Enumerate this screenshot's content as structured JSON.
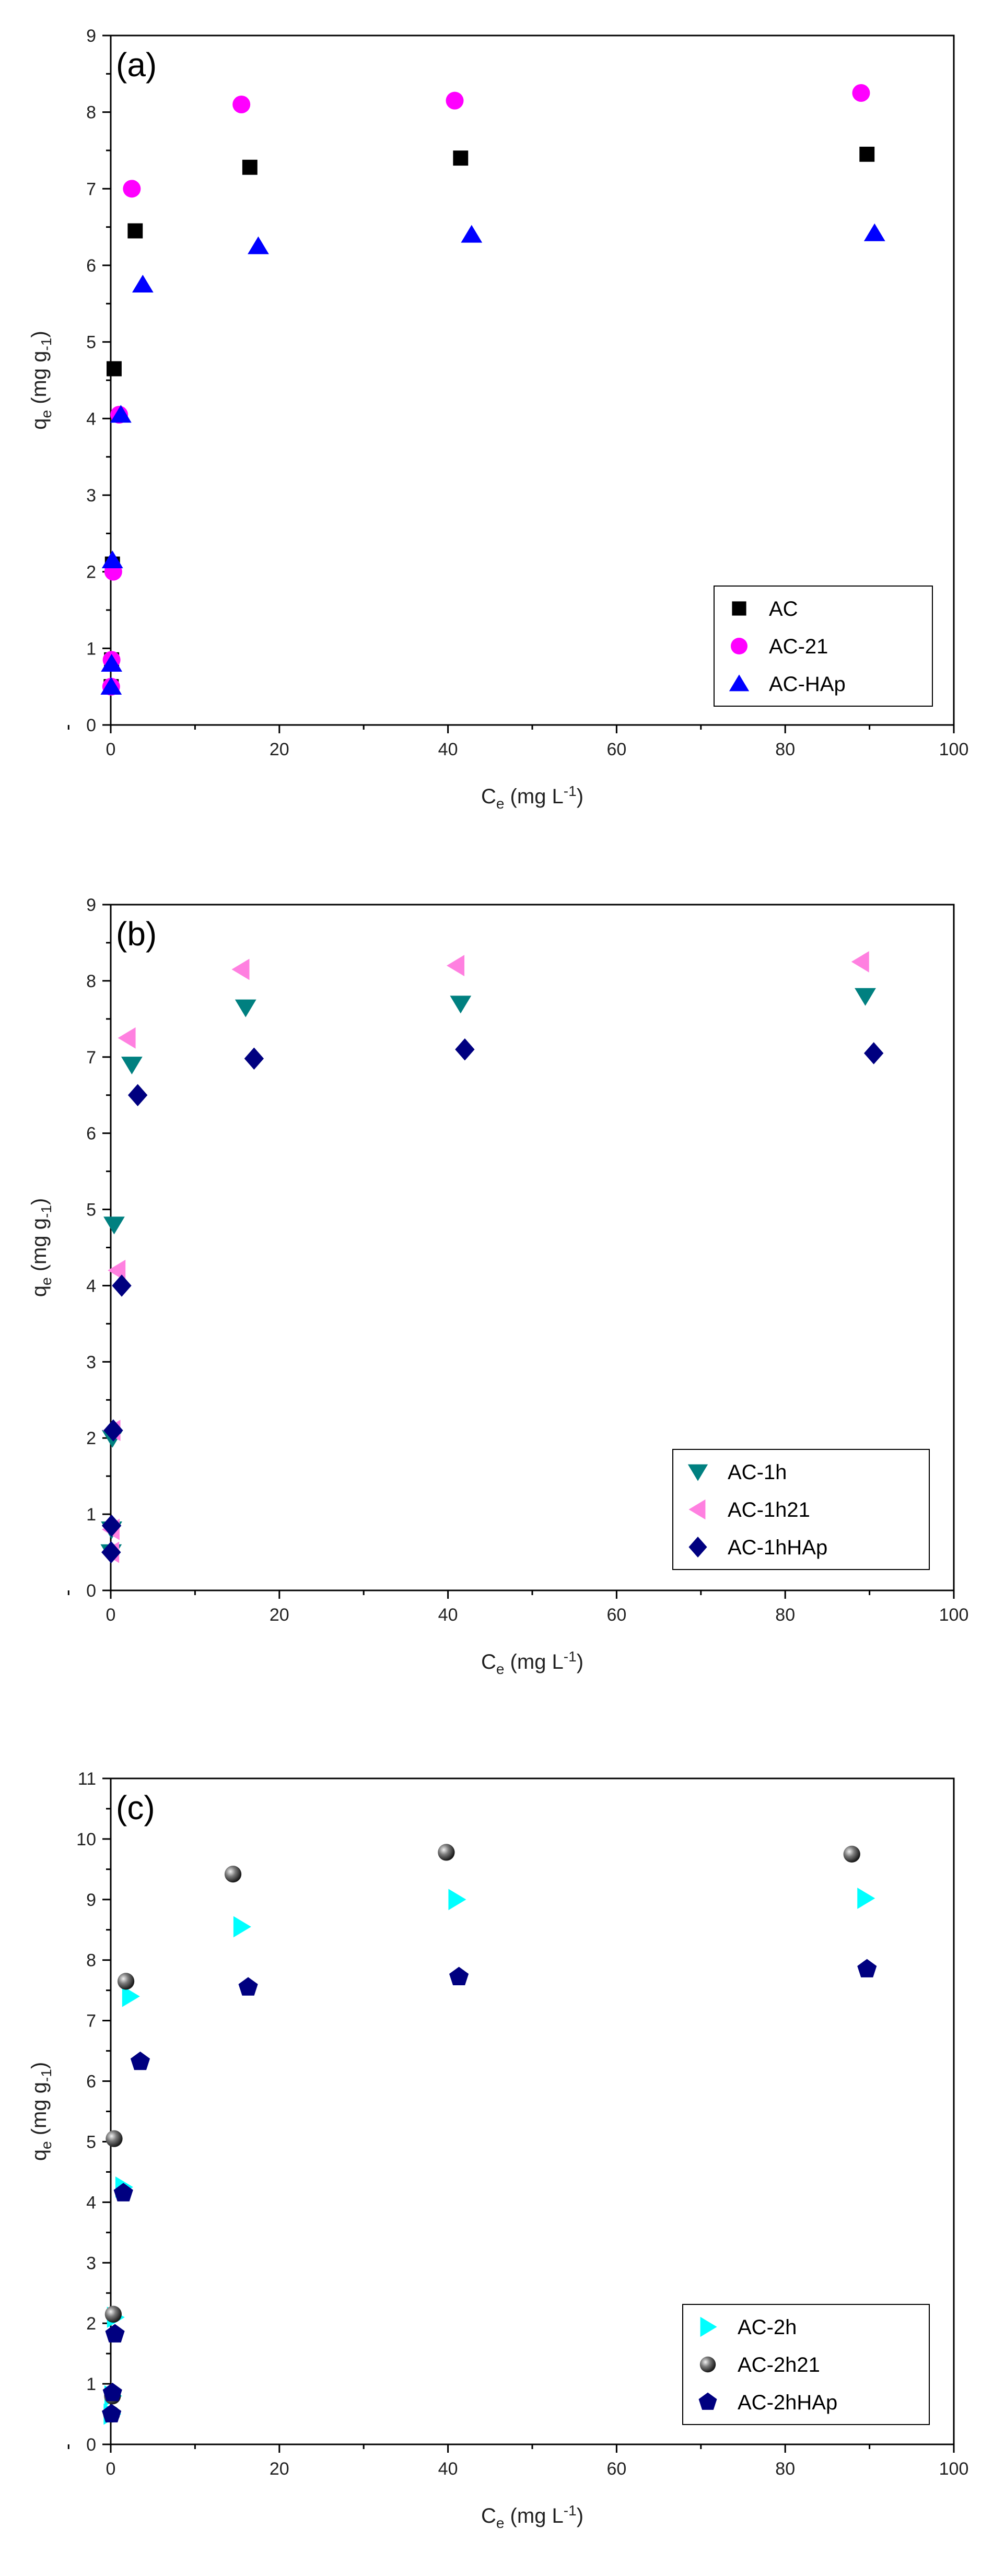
{
  "chart_data": [
    {
      "type": "scatter",
      "panel_label": "(a)",
      "xlabel": {
        "main": "C",
        "sub": "e",
        "unit": " (mg L",
        "sup": "-1",
        "close": ")"
      },
      "ylabel": {
        "main": "q",
        "sub": "e",
        "unit": " (mg g",
        "sub2": "-1",
        "close": ")"
      },
      "xlim": [
        0,
        100
      ],
      "ylim": [
        0,
        9
      ],
      "xticks": [
        0,
        20,
        40,
        60,
        80,
        100
      ],
      "yticks": [
        0,
        1,
        2,
        3,
        4,
        5,
        6,
        7,
        8,
        9
      ],
      "grid": false,
      "legend_position": "bottom-right",
      "series": [
        {
          "name": "AC",
          "marker": "square",
          "color": "#000000",
          "x": [
            0.05,
            0.1,
            0.2,
            0.4,
            2.9,
            16.5,
            41.5,
            89.7
          ],
          "y": [
            0.5,
            0.85,
            2.1,
            4.65,
            6.45,
            7.28,
            7.4,
            7.45
          ]
        },
        {
          "name": "AC-21",
          "marker": "circle",
          "color": "#ff00ff",
          "x": [
            0.05,
            0.1,
            0.3,
            1.0,
            2.5,
            15.5,
            40.8,
            89.0
          ],
          "y": [
            0.5,
            0.85,
            2.0,
            4.05,
            7.0,
            8.1,
            8.15,
            8.25
          ]
        },
        {
          "name": "AC-HAp",
          "marker": "triangle-up",
          "color": "#0000ff",
          "x": [
            0.05,
            0.1,
            0.2,
            1.2,
            3.8,
            17.5,
            42.8,
            90.6
          ],
          "y": [
            0.5,
            0.8,
            2.15,
            4.05,
            5.75,
            6.25,
            6.4,
            6.42
          ]
        }
      ]
    },
    {
      "type": "scatter",
      "panel_label": "(b)",
      "xlabel": {
        "main": "C",
        "sub": "e",
        "unit": " (mg L",
        "sup": "-1",
        "close": ")"
      },
      "ylabel": {
        "main": "q",
        "sub": "e",
        "unit": " (mg g",
        "sub2": "-1",
        "close": ")"
      },
      "xlim": [
        0,
        100
      ],
      "ylim": [
        0,
        9
      ],
      "xticks": [
        0,
        20,
        40,
        60,
        80,
        100
      ],
      "yticks": [
        0,
        1,
        2,
        3,
        4,
        5,
        6,
        7,
        8,
        9
      ],
      "grid": false,
      "legend_position": "bottom-right",
      "series": [
        {
          "name": "AC-1h",
          "marker": "triangle-down",
          "color": "#008080",
          "x": [
            0.05,
            0.1,
            0.2,
            0.4,
            2.5,
            16.0,
            41.5,
            89.5
          ],
          "y": [
            0.5,
            0.8,
            2.0,
            4.8,
            6.9,
            7.65,
            7.7,
            7.8
          ]
        },
        {
          "name": "AC-1h21",
          "marker": "triangle-left",
          "color": "#ff80e0",
          "x": [
            0.05,
            0.1,
            0.2,
            0.8,
            2.0,
            15.5,
            41.0,
            89.0
          ],
          "y": [
            0.5,
            0.8,
            2.1,
            4.2,
            7.25,
            8.15,
            8.2,
            8.25
          ]
        },
        {
          "name": "AC-1hHAp",
          "marker": "diamond",
          "color": "#000080",
          "x": [
            0.05,
            0.1,
            0.3,
            1.3,
            3.2,
            17.0,
            42.0,
            90.5
          ],
          "y": [
            0.5,
            0.85,
            2.1,
            4.0,
            6.5,
            6.98,
            7.1,
            7.05
          ]
        }
      ]
    },
    {
      "type": "scatter",
      "panel_label": "(c)",
      "xlabel": {
        "main": "C",
        "sub": "e",
        "unit": " (mg L",
        "sup": "-1",
        "close": ")"
      },
      "ylabel": {
        "main": "q",
        "sub": "e",
        "unit": " (mg g",
        "sub2": "-1",
        "close": ")"
      },
      "xlim": [
        0,
        100
      ],
      "ylim": [
        0,
        11
      ],
      "xticks": [
        0,
        20,
        40,
        60,
        80,
        100
      ],
      "yticks": [
        0,
        1,
        2,
        3,
        4,
        5,
        6,
        7,
        8,
        9,
        10,
        11
      ],
      "grid": false,
      "legend_position": "bottom-right",
      "series": [
        {
          "name": "AC-2h",
          "marker": "triangle-right",
          "color": "#00ffff",
          "x": [
            0.1,
            0.2,
            0.5,
            1.5,
            2.3,
            15.5,
            41.0,
            89.5
          ],
          "y": [
            0.5,
            0.8,
            2.1,
            4.25,
            7.4,
            8.55,
            9.0,
            9.02
          ]
        },
        {
          "name": "AC-2h21",
          "marker": "sphere",
          "color": "#555555",
          "x": [
            0.1,
            0.2,
            0.3,
            0.4,
            1.8,
            14.5,
            39.8,
            87.9
          ],
          "y": [
            0.5,
            0.8,
            2.15,
            5.05,
            7.65,
            9.42,
            9.78,
            9.75
          ]
        },
        {
          "name": "AC-2hHAp",
          "marker": "pentagon",
          "color": "#000080",
          "x": [
            0.1,
            0.2,
            0.5,
            1.5,
            3.5,
            16.3,
            41.3,
            89.7
          ],
          "y": [
            0.5,
            0.85,
            1.82,
            4.15,
            6.32,
            7.55,
            7.72,
            7.85
          ]
        }
      ]
    }
  ]
}
